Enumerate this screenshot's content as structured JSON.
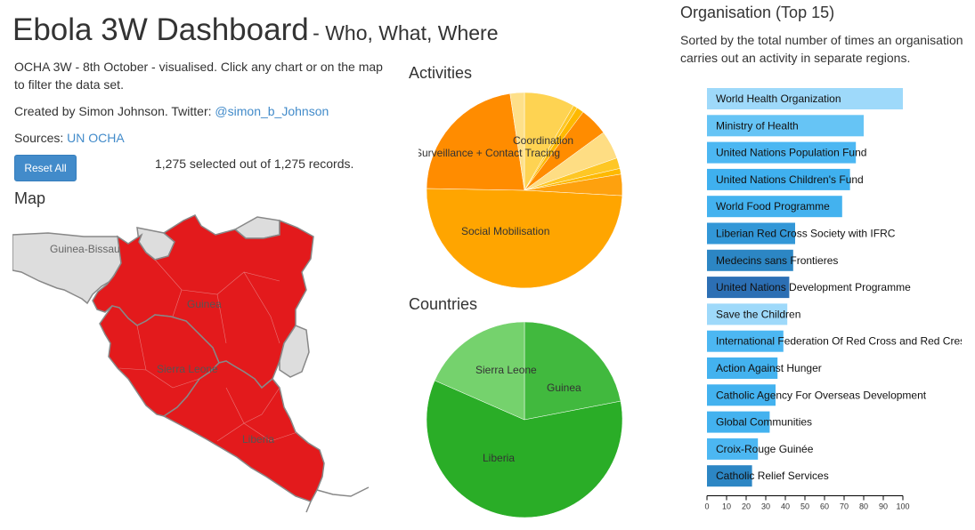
{
  "header": {
    "title": "Ebola 3W Dashboard",
    "subtitle": "- Who, What, Where"
  },
  "intro": {
    "description": "OCHA 3W - 8th October - visualised. Click any chart or on the map to filter the data set.",
    "created_by_prefix": "Created by Simon Johnson. Twitter: ",
    "twitter_handle": "@simon_b_Johnson",
    "sources_prefix": "Sources: ",
    "sources_link": "UN OCHA"
  },
  "controls": {
    "reset_label": "Reset All",
    "records_text": "1,275 selected out of 1,275 records."
  },
  "map": {
    "title": "Map",
    "labels": [
      "Guinea-Bissau",
      "Guinea",
      "Sierra Leone",
      "Liberia"
    ],
    "colors": {
      "selected": "#e31a1c",
      "unselected": "#dddddd",
      "border": "#888888"
    }
  },
  "activities": {
    "title": "Activities",
    "labels": [
      "Coordination",
      "Surveillance + Contact Tracing",
      "Social Mobilisation"
    ]
  },
  "countries": {
    "title": "Countries",
    "labels": [
      "Sierra Leone",
      "Guinea",
      "Liberia"
    ]
  },
  "organisation": {
    "title": "Organisation (Top 15)",
    "description": "Sorted by the total number of times an organisation carries out an activity in separate regions."
  },
  "chart_data": [
    {
      "type": "pie",
      "title": "Activities",
      "slices": [
        {
          "label": "Coordination",
          "value": 71,
          "color": "#fed352"
        },
        {
          "label": "",
          "value": 6,
          "color": "#fec725"
        },
        {
          "label": "",
          "value": 10,
          "color": "#feb900"
        },
        {
          "label": "",
          "value": 40,
          "color": "#ff8c00"
        },
        {
          "label": "",
          "value": 40,
          "color": "#fedd83"
        },
        {
          "label": "",
          "value": 15,
          "color": "#fec725"
        },
        {
          "label": "",
          "value": 8,
          "color": "#feb900"
        },
        {
          "label": "",
          "value": 30,
          "color": "#fea10e"
        },
        {
          "label": "Social Mobilisation",
          "value": 420,
          "color": "#ffa500"
        },
        {
          "label": "Surveillance + Contact Tracing",
          "value": 190,
          "color": "#ff8c00"
        },
        {
          "label": "",
          "value": 20,
          "color": "#fee08a"
        }
      ]
    },
    {
      "type": "pie",
      "title": "Countries",
      "slices": [
        {
          "label": "Guinea",
          "value": 280,
          "color": "#41b93e"
        },
        {
          "label": "Liberia",
          "value": 760,
          "color": "#2aad27"
        },
        {
          "label": "Sierra Leone",
          "value": 235,
          "color": "#75d26d"
        }
      ]
    },
    {
      "type": "bar",
      "title": "Organisation (Top 15)",
      "orientation": "horizontal",
      "xlim": [
        0,
        100
      ],
      "ticks": [
        0,
        10,
        20,
        30,
        40,
        50,
        60,
        70,
        80,
        90,
        100
      ],
      "categories": [
        "World Health Organization",
        "Ministry of Health",
        "United Nations Population Fund",
        "United Nations Children's Fund",
        "World Food Programme",
        "Liberian Red Cross Society with IFRC",
        "Medecins sans Frontieres",
        "United Nations Development Programme",
        "Save the Children",
        "International Federation Of Red Cross and Red Crescent",
        "Action Against Hunger",
        "Catholic Agency For Overseas Development",
        "Global Communities",
        "Croix-Rouge Guinée",
        "Catholic Relief Services"
      ],
      "values": [
        100,
        80,
        76,
        73,
        69,
        45,
        44,
        42,
        41,
        39,
        36,
        35,
        32,
        26,
        23
      ],
      "colors": [
        "#9ed9fa",
        "#66c4f5",
        "#4cb7f2",
        "#3fb0ef",
        "#43b2ef",
        "#3297d7",
        "#2c86c4",
        "#2c6fb4",
        "#9ed9fa",
        "#4cb7f2",
        "#43b2ef",
        "#43b2ef",
        "#43b2ef",
        "#4cb7f2",
        "#2c86c4"
      ]
    }
  ]
}
